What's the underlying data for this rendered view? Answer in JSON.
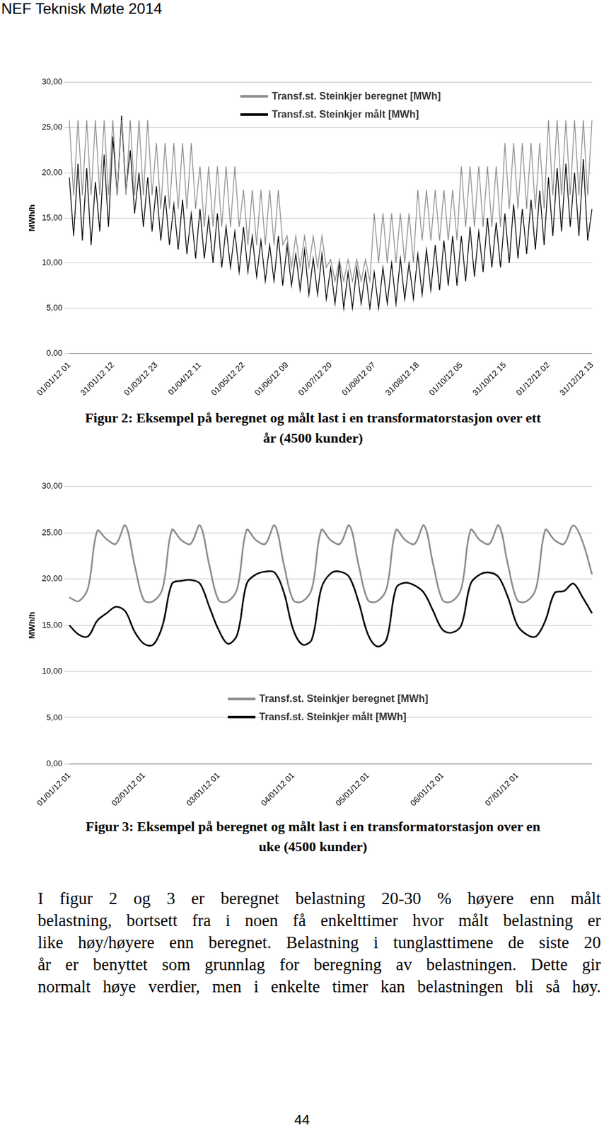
{
  "header": "NEF Teknisk Møte 2014",
  "chart_data": [
    {
      "type": "line",
      "y_label": "MWh/h",
      "categories": [
        "01/01/12 01",
        null,
        null,
        null,
        null,
        null,
        null,
        null,
        null,
        null,
        "31/01/12 12",
        null,
        null,
        null,
        null,
        null,
        null,
        null,
        null,
        null,
        "01/03/12 23",
        null,
        null,
        null,
        null,
        null,
        null,
        null,
        null,
        null,
        "01/04/12 11",
        null,
        null,
        null,
        null,
        null,
        null,
        null,
        null,
        null,
        "01/05/12 22",
        null,
        null,
        null,
        null,
        null,
        null,
        null,
        null,
        null,
        "01/06/12 09",
        null,
        null,
        null,
        null,
        null,
        null,
        null,
        null,
        null,
        "01/07/12 20",
        null,
        null,
        null,
        null,
        null,
        null,
        null,
        null,
        null,
        "01/08/12 07",
        null,
        null,
        null,
        null,
        null,
        null,
        null,
        null,
        null,
        "31/08/12 18",
        null,
        null,
        null,
        null,
        null,
        null,
        null,
        null,
        null,
        "01/10/12 05",
        null,
        null,
        null,
        null,
        null,
        null,
        null,
        null,
        null,
        "31/10/12 15",
        null,
        null,
        null,
        null,
        null,
        null,
        null,
        null,
        null,
        "01/12/12 02",
        null,
        null,
        null,
        null,
        null,
        null,
        null,
        null,
        null,
        "31/12/12 13"
      ],
      "series": [
        {
          "name": "Transf.st. Steinkjer beregnet [MWh]",
          "color": "#8c8c8c",
          "values": [
            25.8,
            17.5,
            25.8,
            17.5,
            25.8,
            17.5,
            25.8,
            17.5,
            25.8,
            17.5,
            25.8,
            17.5,
            25.8,
            17.5,
            25.8,
            17.5,
            25.8,
            17.5,
            25.8,
            17.5,
            23.3,
            16.0,
            23.3,
            16.0,
            23.3,
            16.0,
            23.3,
            16.0,
            23.3,
            16.0,
            20.7,
            14.0,
            20.7,
            14.0,
            20.7,
            14.0,
            20.7,
            14.0,
            20.7,
            14.0,
            18.1,
            12.0,
            18.1,
            12.0,
            18.1,
            12.0,
            18.1,
            12.0,
            18.1,
            12.0,
            13.0,
            9.5,
            13.0,
            9.5,
            13.0,
            9.5,
            13.0,
            9.5,
            13.0,
            9.5,
            10.4,
            8.0,
            10.4,
            8.0,
            10.4,
            8.0,
            10.4,
            8.0,
            10.4,
            8.0,
            15.5,
            10.0,
            15.5,
            10.0,
            15.5,
            10.0,
            15.5,
            10.0,
            15.5,
            10.0,
            18.1,
            12.5,
            18.1,
            12.5,
            18.1,
            12.5,
            18.1,
            12.5,
            18.1,
            12.5,
            20.7,
            14.0,
            20.7,
            14.0,
            20.7,
            14.0,
            20.7,
            14.0,
            20.7,
            14.0,
            23.3,
            16.0,
            23.3,
            16.0,
            23.3,
            16.0,
            23.3,
            16.0,
            23.3,
            16.0,
            25.8,
            17.5,
            25.8,
            17.5,
            25.8,
            17.5,
            25.8,
            17.5,
            25.8,
            17.5,
            25.8
          ]
        },
        {
          "name": "Transf.st. Steinkjer målt [MWh]",
          "color": "#000000",
          "values": [
            19.5,
            13.0,
            21.0,
            12.5,
            20.5,
            12.0,
            19.0,
            13.5,
            22.0,
            14.0,
            24.0,
            17.5,
            26.3,
            18.0,
            22.5,
            15.5,
            20.0,
            14.0,
            19.5,
            13.5,
            18.5,
            12.5,
            17.5,
            12.0,
            16.5,
            11.5,
            17.0,
            11.0,
            15.5,
            10.5,
            16.0,
            10.5,
            15.0,
            10.0,
            15.5,
            9.5,
            14.0,
            9.5,
            13.5,
            9.0,
            14.0,
            9.0,
            13.0,
            8.5,
            12.5,
            8.0,
            12.0,
            8.0,
            13.0,
            7.5,
            12.0,
            7.5,
            11.0,
            7.0,
            11.5,
            6.5,
            10.5,
            6.5,
            11.0,
            6.0,
            9.5,
            5.5,
            10.0,
            5.0,
            9.0,
            5.0,
            9.5,
            5.5,
            9.0,
            5.0,
            9.0,
            5.0,
            9.5,
            5.5,
            10.0,
            5.5,
            10.5,
            6.0,
            10.0,
            6.0,
            11.0,
            6.5,
            11.5,
            7.0,
            12.0,
            7.0,
            12.5,
            7.5,
            13.0,
            7.5,
            13.0,
            8.0,
            14.0,
            8.5,
            13.5,
            9.0,
            15.0,
            9.5,
            14.5,
            9.5,
            15.5,
            10.0,
            16.5,
            10.5,
            16.0,
            11.0,
            17.0,
            11.5,
            18.0,
            12.0,
            19.5,
            13.0,
            20.5,
            13.5,
            21.0,
            14.0,
            20.0,
            13.0,
            21.5,
            12.5,
            16.0
          ]
        }
      ],
      "ylim": [
        0,
        30
      ],
      "yticks": [
        {
          "value": 0,
          "label": "0,00"
        },
        {
          "value": 5,
          "label": "5,00"
        },
        {
          "value": 10,
          "label": "10,00"
        },
        {
          "value": 15,
          "label": "15,00"
        },
        {
          "value": 20,
          "label": "20,00"
        },
        {
          "value": 25,
          "label": "25,00"
        },
        {
          "value": 30,
          "label": "30,00"
        }
      ],
      "grid": true,
      "legend": "top"
    },
    {
      "type": "line",
      "y_label": "MWh/h",
      "categories": [
        "01/01/12 01",
        null,
        null,
        null,
        null,
        null,
        null,
        null,
        "02/01/12 01",
        null,
        null,
        null,
        null,
        null,
        null,
        null,
        "03/01/12 01",
        null,
        null,
        null,
        null,
        null,
        null,
        null,
        "04/01/12 01",
        null,
        null,
        null,
        null,
        null,
        null,
        null,
        "05/01/12 01",
        null,
        null,
        null,
        null,
        null,
        null,
        null,
        "06/01/12 01",
        null,
        null,
        null,
        null,
        null,
        null,
        null,
        "07/01/12 01",
        null,
        null,
        null,
        null,
        null,
        null,
        null,
        null
      ],
      "series": [
        {
          "name": "Transf.st. Steinkjer beregnet [MWh]",
          "color": "#8c8c8c",
          "values": [
            18.0,
            17.6,
            19.0,
            25.2,
            24.3,
            23.8,
            25.8,
            21.5,
            17.7,
            17.6,
            19.0,
            25.3,
            24.2,
            23.8,
            25.8,
            21.5,
            17.7,
            17.6,
            19.0,
            25.3,
            24.2,
            23.8,
            25.8,
            21.5,
            17.7,
            17.6,
            19.0,
            25.3,
            24.2,
            23.8,
            25.8,
            21.5,
            17.7,
            17.6,
            19.0,
            25.3,
            24.2,
            23.8,
            25.8,
            21.5,
            17.7,
            17.6,
            19.0,
            25.3,
            24.2,
            23.8,
            25.8,
            21.5,
            17.7,
            17.6,
            19.0,
            25.3,
            24.2,
            23.8,
            25.8,
            24.0,
            20.5
          ]
        },
        {
          "name": "Transf.st. Steinkjer målt [MWh]",
          "color": "#000000",
          "values": [
            15.0,
            14.0,
            13.8,
            15.5,
            16.3,
            17.0,
            16.5,
            14.3,
            13.0,
            12.9,
            15.0,
            19.5,
            19.8,
            19.9,
            19.5,
            17.0,
            14.5,
            13.0,
            14.0,
            19.5,
            20.5,
            20.8,
            20.7,
            18.5,
            14.5,
            12.9,
            13.5,
            19.0,
            20.6,
            20.8,
            20.2,
            17.5,
            14.0,
            12.7,
            13.5,
            19.0,
            19.6,
            19.3,
            18.5,
            16.5,
            14.5,
            14.2,
            15.0,
            19.5,
            20.5,
            20.7,
            20.2,
            18.0,
            15.0,
            14.0,
            13.8,
            15.5,
            18.5,
            18.7,
            19.5,
            18.0,
            16.3
          ]
        }
      ],
      "ylim": [
        0,
        30
      ],
      "yticks": [
        {
          "value": 0,
          "label": "0,00"
        },
        {
          "value": 5,
          "label": "5,00"
        },
        {
          "value": 10,
          "label": "10,00"
        },
        {
          "value": 15,
          "label": "15,00"
        },
        {
          "value": 20,
          "label": "20,00"
        },
        {
          "value": 25,
          "label": "25,00"
        },
        {
          "value": 30,
          "label": "30,00"
        }
      ],
      "grid": true,
      "legend": "bottom"
    }
  ],
  "captions": [
    [
      "Figur 2: Eksempel på beregnet og målt last i en transformatorstasjon over ett",
      "år (4500 kunder)"
    ],
    [
      "Figur 3: Eksempel på beregnet og målt last i en transformatorstasjon over en",
      "uke (4500 kunder)"
    ]
  ],
  "paragraph": [
    "I figur 2 og 3 er beregnet belastning 20-30 % høyere enn målt",
    "belastning, bortsett fra i noen få enkelttimer hvor målt belastning er",
    "like høy/høyere enn beregnet. Belastning i tunglasttimene de siste 20",
    "år er benyttet som grunnlag for beregning av belastningen. Dette gir",
    "normalt høye verdier, men i enkelte timer kan belastningen bli så høy."
  ],
  "page_number": "44"
}
